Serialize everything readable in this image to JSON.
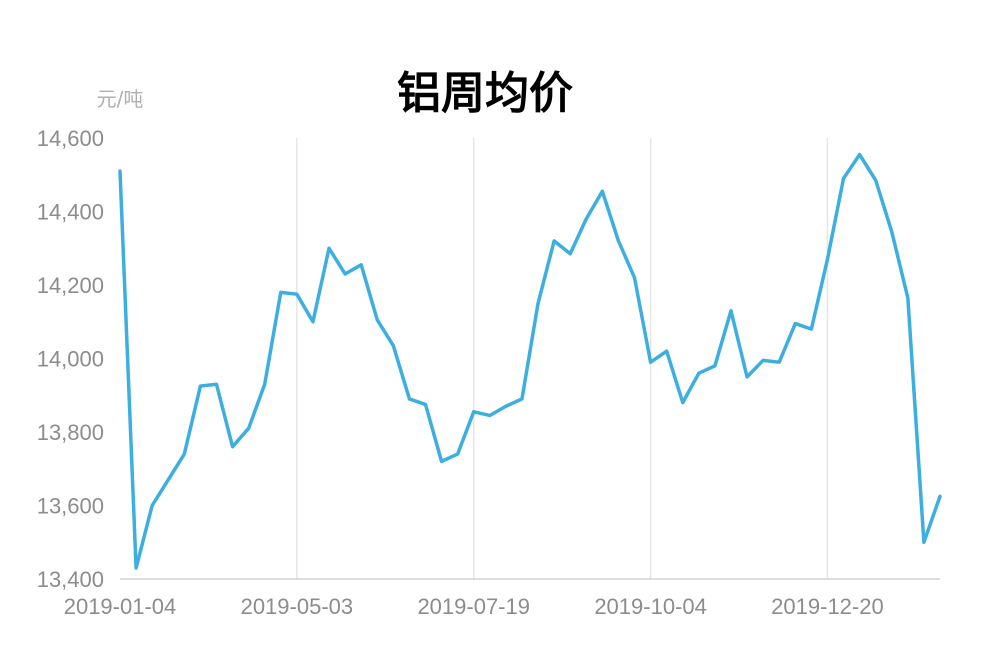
{
  "chart_data": {
    "type": "line",
    "title": "铝周均价",
    "ylabel": "元/吨",
    "xlabel": "",
    "ylim": [
      13400,
      14600
    ],
    "yticks": [
      "13,400",
      "13,600",
      "13,800",
      "14,000",
      "14,200",
      "14,400",
      "14,600"
    ],
    "xticks": [
      "2019-01-04",
      "2019-05-03",
      "2019-07-19",
      "2019-10-04",
      "2019-12-20"
    ],
    "xtick_indices": [
      0,
      11,
      22,
      33,
      44
    ],
    "grid": "vertical",
    "line_color": "#3daee0",
    "grid_color": "#e6e6e6",
    "values": [
      14510,
      13430,
      13600,
      13670,
      13740,
      13925,
      13930,
      13760,
      13810,
      13930,
      14180,
      14175,
      14100,
      14300,
      14230,
      14255,
      14105,
      14035,
      13890,
      13875,
      13720,
      13740,
      13855,
      13845,
      13870,
      13890,
      14150,
      14320,
      14285,
      14380,
      14455,
      14320,
      14220,
      13990,
      14020,
      13880,
      13960,
      13980,
      14130,
      13950,
      13995,
      13990,
      14095,
      14080,
      14270,
      14490,
      14555,
      14485,
      14345,
      14165,
      13500,
      13625
    ]
  }
}
